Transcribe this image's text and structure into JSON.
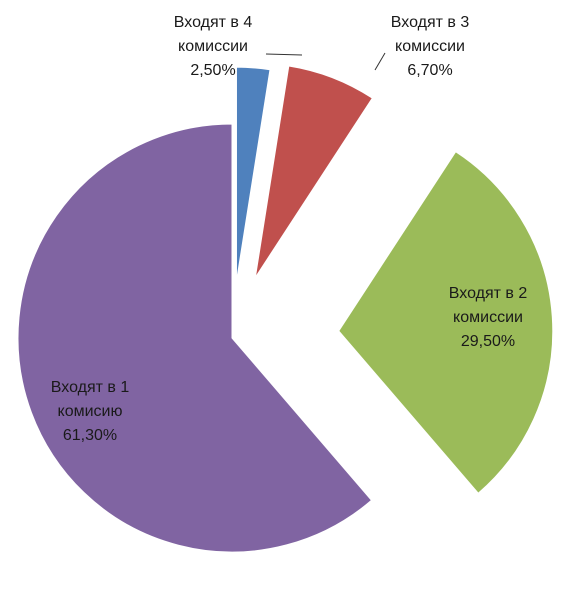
{
  "chart_data": {
    "type": "pie",
    "exploded": true,
    "slices": [
      {
        "label_lines": [
          "Входят в 4",
          "комиссии"
        ],
        "value_label": "2,50%",
        "value": 2.5,
        "color": "#4F81BD"
      },
      {
        "label_lines": [
          "Входят в 3",
          "комиссии"
        ],
        "value_label": "6,70%",
        "value": 6.7,
        "color": "#C0504D"
      },
      {
        "label_lines": [
          "Входят в 2",
          "комиссии"
        ],
        "value_label": "29,50%",
        "value": 29.5,
        "color": "#9BBB59"
      },
      {
        "label_lines": [
          "Входят в 1",
          "комисию"
        ],
        "value_label": "61,30%",
        "value": 61.3,
        "color": "#8064A2"
      }
    ],
    "legend": "none"
  }
}
